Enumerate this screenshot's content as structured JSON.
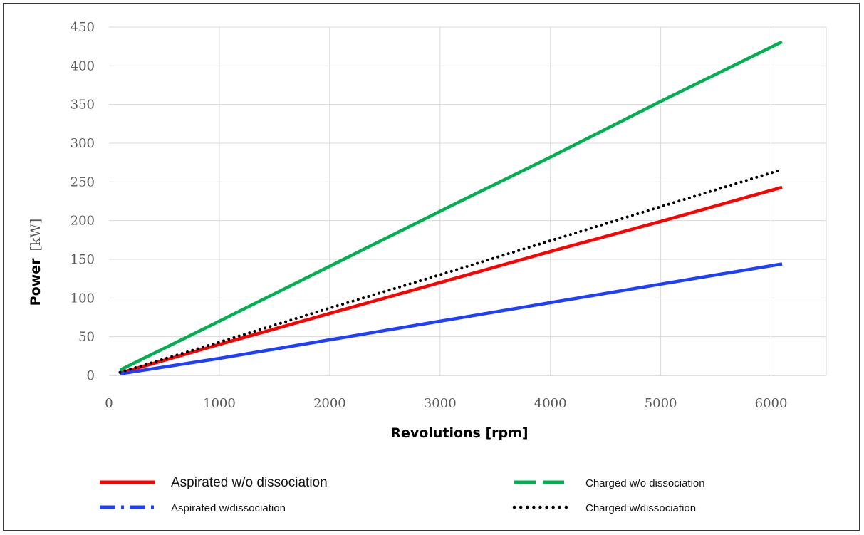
{
  "chart_data": {
    "type": "line",
    "title": "",
    "xlabel": "Revolutions [rpm]",
    "ylabel": "Power",
    "ylabel_unit": "[kW]",
    "xlim": [
      0,
      6500
    ],
    "ylim": [
      0,
      450
    ],
    "x_ticks": [
      0,
      1000,
      2000,
      3000,
      4000,
      5000,
      6000
    ],
    "y_ticks": [
      0,
      50,
      100,
      150,
      200,
      250,
      300,
      350,
      400,
      450
    ],
    "grid": true,
    "legend_position": "bottom",
    "x": [
      100,
      1000,
      2000,
      3000,
      4000,
      5000,
      6100
    ],
    "series": [
      {
        "name": "Aspirated w/o dissociation",
        "color": "#ff0000",
        "dash": "solid",
        "values": [
          3,
          40,
          80,
          120,
          160,
          199,
          243
        ]
      },
      {
        "name": "Aspirated w/dissociation",
        "color": "#1f3fff",
        "dash": "dash-dot",
        "values": [
          2,
          22,
          46,
          70,
          94,
          118,
          144
        ]
      },
      {
        "name": "Charged w/o dissociation",
        "color": "#00b050",
        "dash": "dashed",
        "values": [
          7,
          70,
          141,
          212,
          282,
          354,
          431
        ]
      },
      {
        "name": "Charged w/dissociation",
        "color": "#000000",
        "dash": "dotted",
        "values": [
          4,
          43,
          87,
          130,
          174,
          218,
          266
        ]
      }
    ]
  }
}
